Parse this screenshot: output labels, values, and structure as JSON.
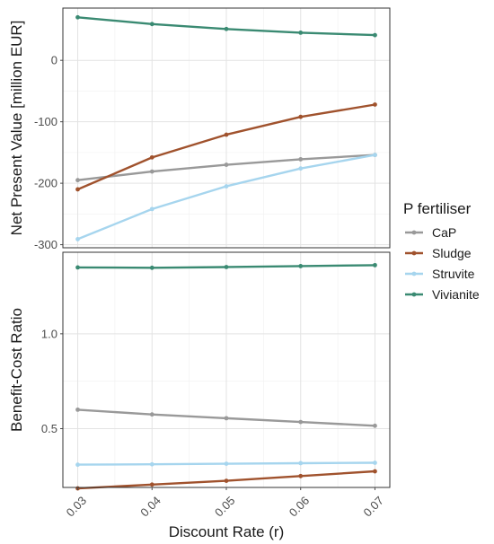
{
  "chart_data": {
    "type": "line",
    "x": [
      0.03,
      0.04,
      0.05,
      0.06,
      0.07
    ],
    "x_tick_labels": [
      "0.03",
      "0.04",
      "0.05",
      "0.06",
      "0.07"
    ],
    "xlabel": "Discount Rate (r)",
    "grid": true,
    "legend": {
      "title": "P fertiliser",
      "placement": "right"
    },
    "series_style": [
      {
        "name": "CaP",
        "color": "#999999"
      },
      {
        "name": "Sludge",
        "color": "#A0522D"
      },
      {
        "name": "Struvite",
        "color": "#A6D5EE"
      },
      {
        "name": "Vivianite",
        "color": "#3A8A72"
      }
    ],
    "panels": [
      {
        "ylabel": "Net Present Value [million EUR]",
        "ylim": [
          -305,
          85
        ],
        "y_ticks": [
          -300,
          -200,
          -100,
          0
        ],
        "y_tick_labels": [
          "-300",
          "-200",
          "-100",
          "0"
        ],
        "series": [
          {
            "name": "CaP",
            "values": [
              -195,
              -181,
              -170,
              -161,
              -154
            ]
          },
          {
            "name": "Sludge",
            "values": [
              -210,
              -158,
              -121,
              -92,
              -72
            ]
          },
          {
            "name": "Struvite",
            "values": [
              -291,
              -242,
              -205,
              -176,
              -154
            ]
          },
          {
            "name": "Vivianite",
            "values": [
              70,
              59,
              51,
              45,
              41
            ]
          }
        ]
      },
      {
        "ylabel": "Benefit-Cost Ratio",
        "ylim": [
          0.19,
          1.43
        ],
        "y_ticks": [
          0.5,
          1.0
        ],
        "y_tick_labels": [
          "0.5",
          "1.0"
        ],
        "series": [
          {
            "name": "CaP",
            "values": [
              0.6,
              0.575,
              0.555,
              0.535,
              0.515
            ]
          },
          {
            "name": "Sludge",
            "values": [
              0.185,
              0.205,
              0.225,
              0.25,
              0.275
            ]
          },
          {
            "name": "Struvite",
            "values": [
              0.31,
              0.312,
              0.315,
              0.318,
              0.32
            ]
          },
          {
            "name": "Vivianite",
            "values": [
              1.35,
              1.348,
              1.352,
              1.357,
              1.362
            ]
          }
        ]
      }
    ]
  }
}
